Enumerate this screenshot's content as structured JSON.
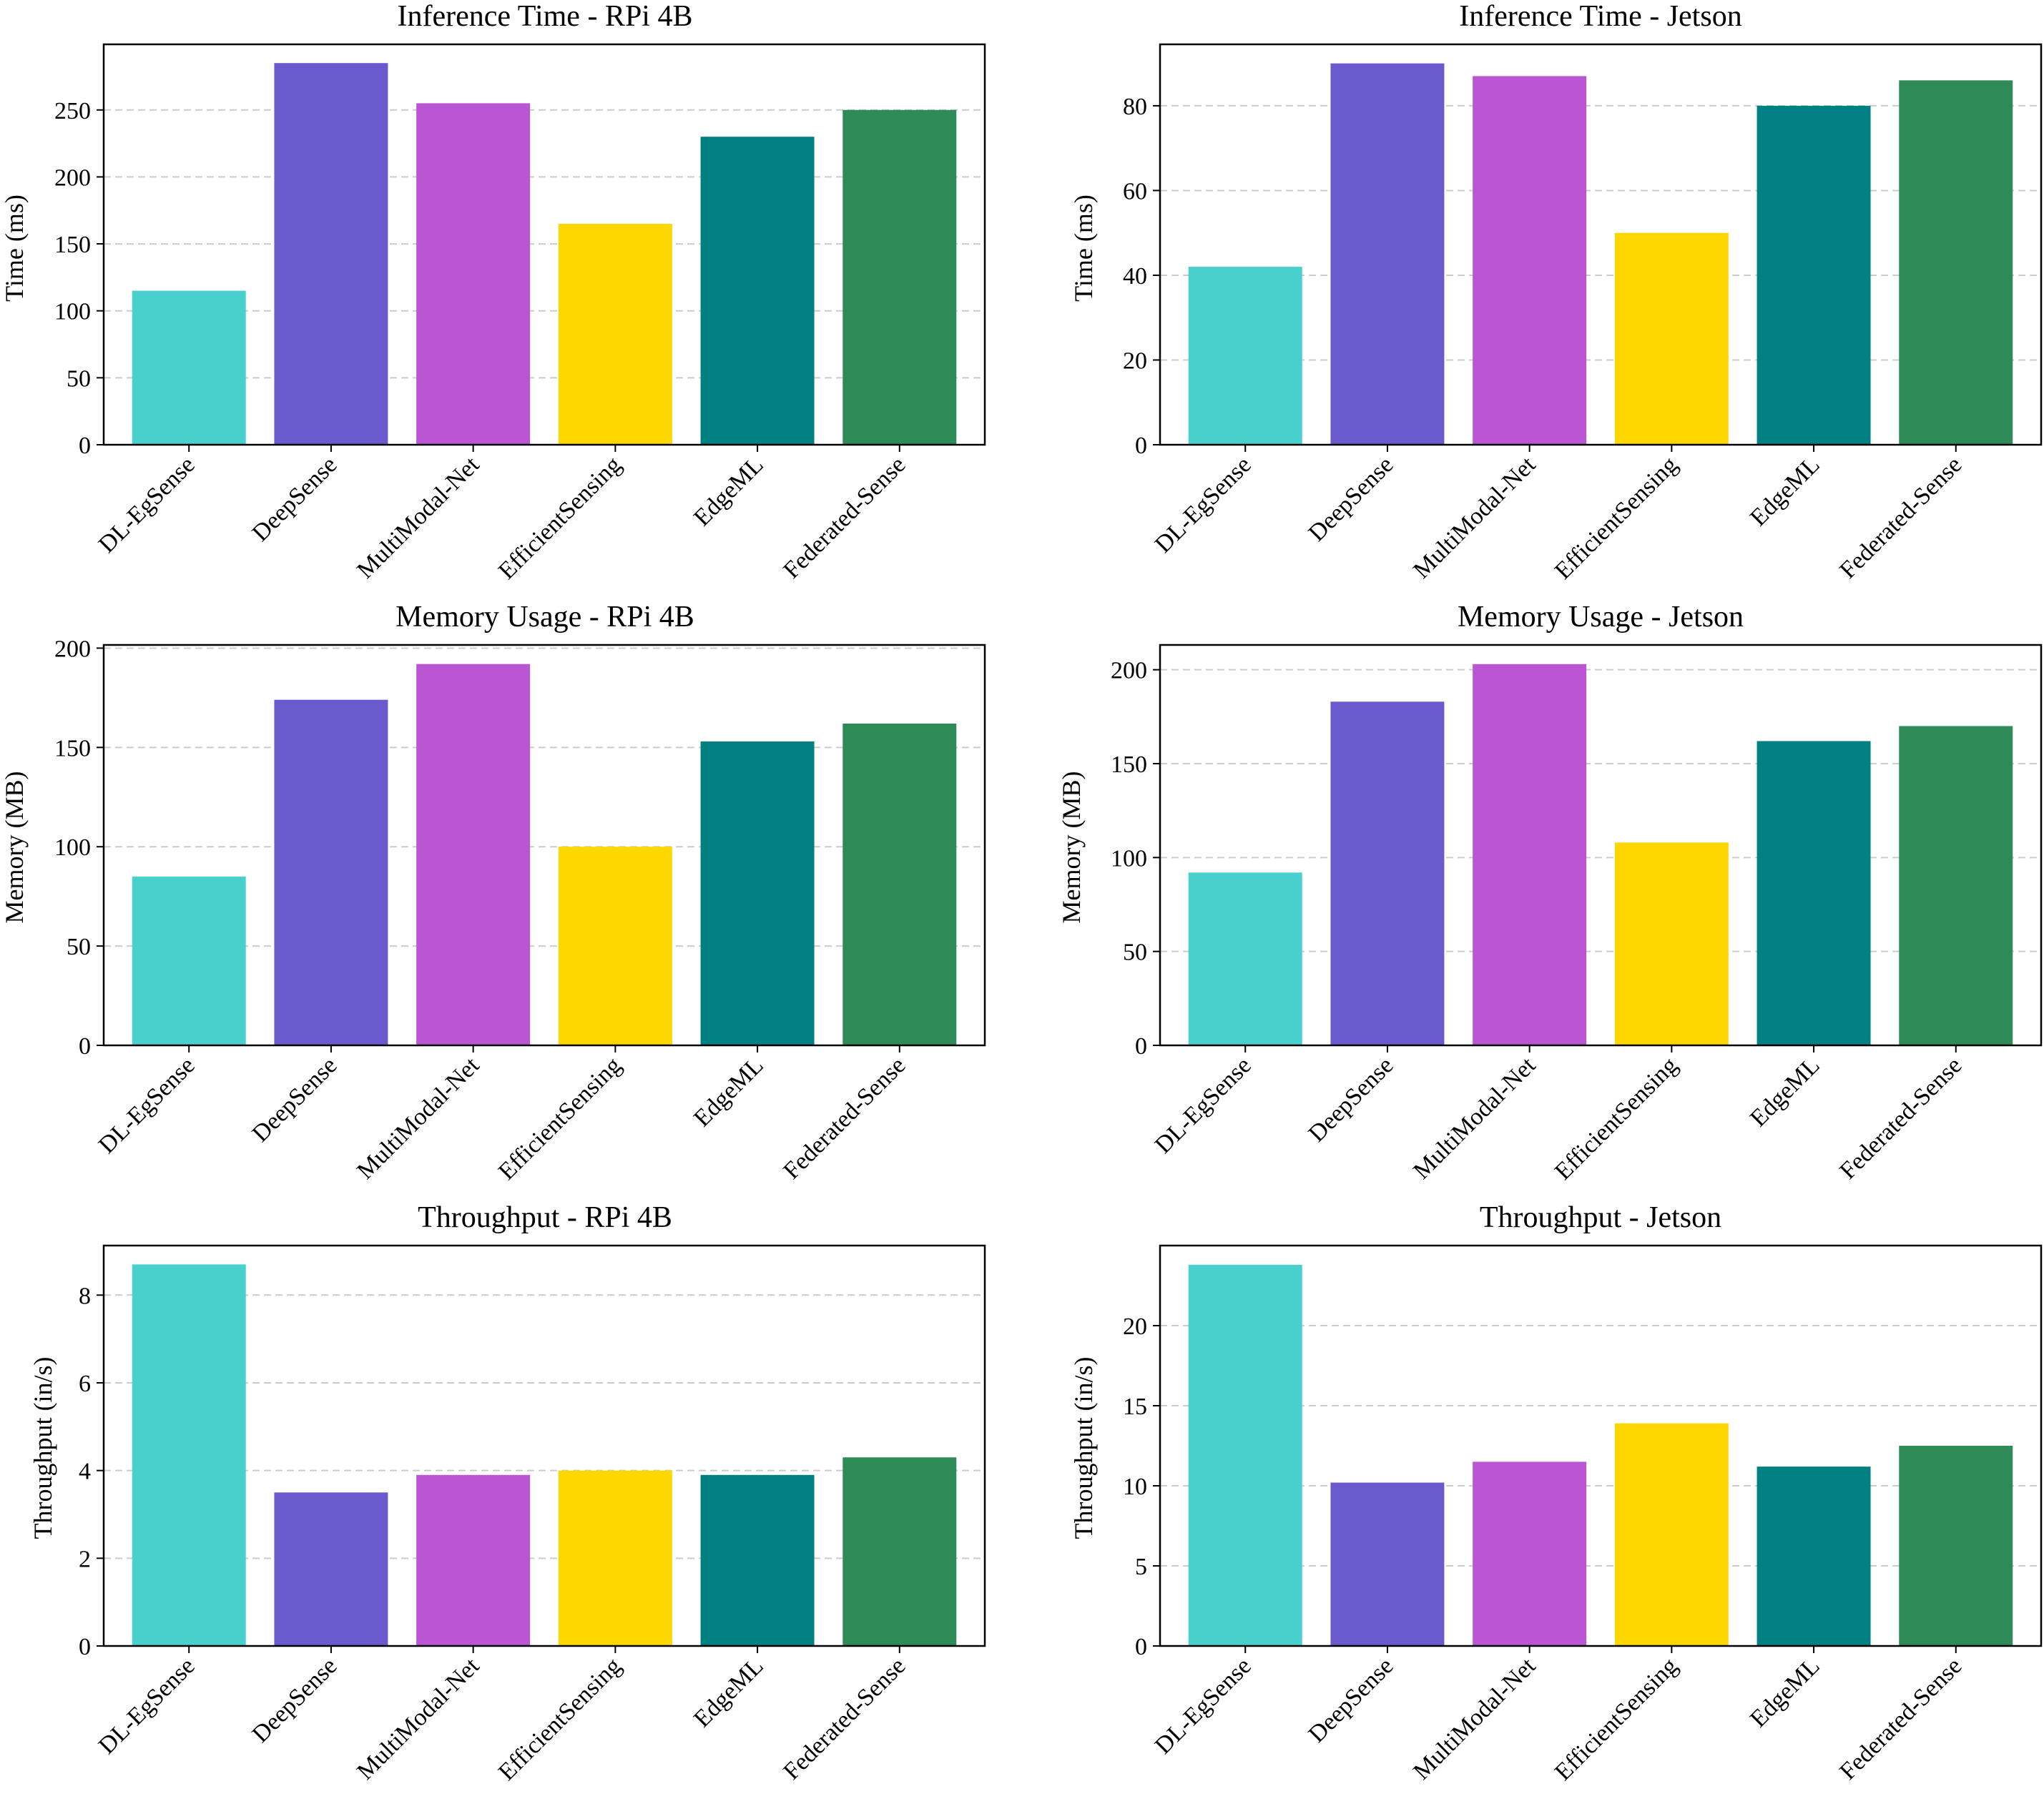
{
  "bar_colors": [
    "#48d1cc",
    "#6a5acd",
    "#ba55d3",
    "#ffd700",
    "#008080",
    "#2e8b57"
  ],
  "grid_color": "#cccccc",
  "chart_data": [
    {
      "type": "bar",
      "title": "Inference Time - RPi 4B",
      "xlabel": "",
      "ylabel": "Time (ms)",
      "categories": [
        "DL-EgSense",
        "DeepSense",
        "MultiModal-Net",
        "EfficientSensing",
        "EdgeML",
        "Federated-Sense"
      ],
      "values": [
        115,
        285,
        255,
        165,
        230,
        250
      ],
      "ylim": [
        0,
        299
      ],
      "yticks": [
        0,
        50,
        100,
        150,
        200,
        250
      ],
      "grid": "y-dashed"
    },
    {
      "type": "bar",
      "title": "Inference Time - Jetson",
      "xlabel": "",
      "ylabel": "Time (ms)",
      "categories": [
        "DL-EgSense",
        "DeepSense",
        "MultiModal-Net",
        "EfficientSensing",
        "EdgeML",
        "Federated-Sense"
      ],
      "values": [
        42,
        90,
        87,
        50,
        80,
        86
      ],
      "ylim": [
        0,
        94.5
      ],
      "yticks": [
        0,
        20,
        40,
        60,
        80
      ],
      "grid": "y-dashed"
    },
    {
      "type": "bar",
      "title": "Memory Usage - RPi 4B",
      "xlabel": "",
      "ylabel": "Memory (MB)",
      "categories": [
        "DL-EgSense",
        "DeepSense",
        "MultiModal-Net",
        "EfficientSensing",
        "EdgeML",
        "Federated-Sense"
      ],
      "values": [
        85,
        174,
        192,
        100,
        153,
        162
      ],
      "ylim": [
        0,
        201.6
      ],
      "yticks": [
        0,
        50,
        100,
        150,
        200
      ],
      "grid": "y-dashed"
    },
    {
      "type": "bar",
      "title": "Memory Usage - Jetson",
      "xlabel": "",
      "ylabel": "Memory (MB)",
      "categories": [
        "DL-EgSense",
        "DeepSense",
        "MultiModal-Net",
        "EfficientSensing",
        "EdgeML",
        "Federated-Sense"
      ],
      "values": [
        92,
        183,
        203,
        108,
        162,
        170
      ],
      "ylim": [
        0,
        213.2
      ],
      "yticks": [
        0,
        50,
        100,
        150,
        200
      ],
      "grid": "y-dashed"
    },
    {
      "type": "bar",
      "title": "Throughput - RPi 4B",
      "xlabel": "",
      "ylabel": "Throughput (in/s)",
      "categories": [
        "DL-EgSense",
        "DeepSense",
        "MultiModal-Net",
        "EfficientSensing",
        "EdgeML",
        "Federated-Sense"
      ],
      "values": [
        8.7,
        3.5,
        3.9,
        4.0,
        3.9,
        4.3
      ],
      "ylim": [
        0,
        9.13
      ],
      "yticks": [
        0,
        2,
        4,
        6,
        8
      ],
      "grid": "y-dashed"
    },
    {
      "type": "bar",
      "title": "Throughput - Jetson",
      "xlabel": "",
      "ylabel": "Throughput (in/s)",
      "categories": [
        "DL-EgSense",
        "DeepSense",
        "MultiModal-Net",
        "EfficientSensing",
        "EdgeML",
        "Federated-Sense"
      ],
      "values": [
        23.8,
        10.2,
        11.5,
        13.9,
        11.2,
        12.5
      ],
      "ylim": [
        0,
        25.0
      ],
      "yticks": [
        0,
        5,
        10,
        15,
        20
      ],
      "grid": "y-dashed"
    }
  ]
}
